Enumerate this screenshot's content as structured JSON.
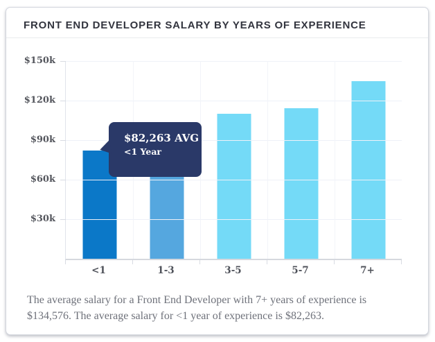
{
  "card": {
    "title": "FRONT END DEVELOPER SALARY BY YEARS OF EXPERIENCE"
  },
  "tooltip": {
    "value_label": "$82,263 AVG",
    "category_label": "<1 Year",
    "bg_color": "#2a3968",
    "text_color": "#ffffff"
  },
  "footer": {
    "line1": "The average salary for a Front End Developer with 7+ years of experience is",
    "line2": "$134,576. The average salary for <1 year of experience is $82,263."
  },
  "chart_data": {
    "type": "bar",
    "title": "FRONT END DEVELOPER SALARY BY YEARS OF EXPERIENCE",
    "categories": [
      "<1",
      "1-3",
      "3-5",
      "5-7",
      "7+"
    ],
    "values": [
      82263,
      89000,
      110000,
      114000,
      134576
    ],
    "bar_colors": [
      "#0b78c8",
      "#55a7df",
      "#74daf7",
      "#74daf7",
      "#74daf7"
    ],
    "highlighted_category": "<1",
    "xlabel": "",
    "ylabel": "",
    "ylim": [
      0,
      150000
    ],
    "ytick_values": [
      150000,
      120000,
      90000,
      60000,
      30000
    ],
    "ytick_labels": [
      "$150k",
      "$120k",
      "$90k",
      "$60k",
      "$30k"
    ],
    "grid": true,
    "legend": false
  }
}
